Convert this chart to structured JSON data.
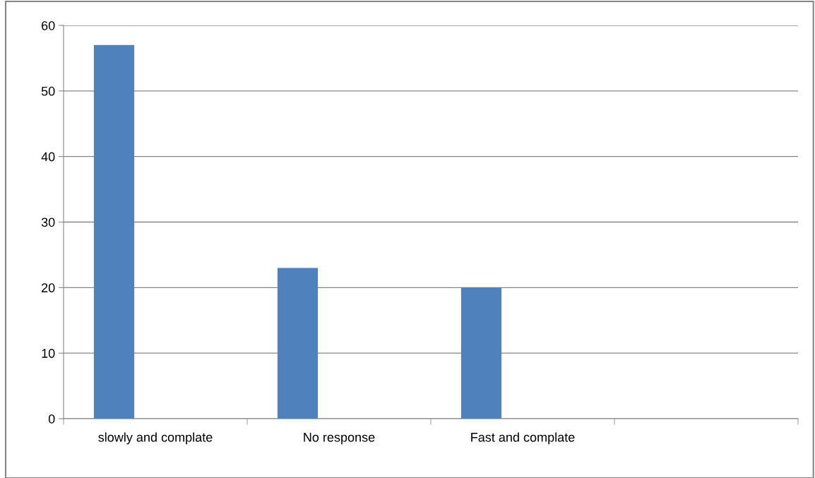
{
  "chart_data": {
    "type": "bar",
    "categories": [
      "slowly and complate",
      "No response",
      "Fast and complate",
      null
    ],
    "values": [
      57,
      23,
      20,
      null
    ],
    "color": "#4f81bd",
    "ylim": [
      0,
      60
    ],
    "yticks": [
      0,
      10,
      20,
      30,
      40,
      50,
      60
    ],
    "grid": "y",
    "legend": false
  }
}
